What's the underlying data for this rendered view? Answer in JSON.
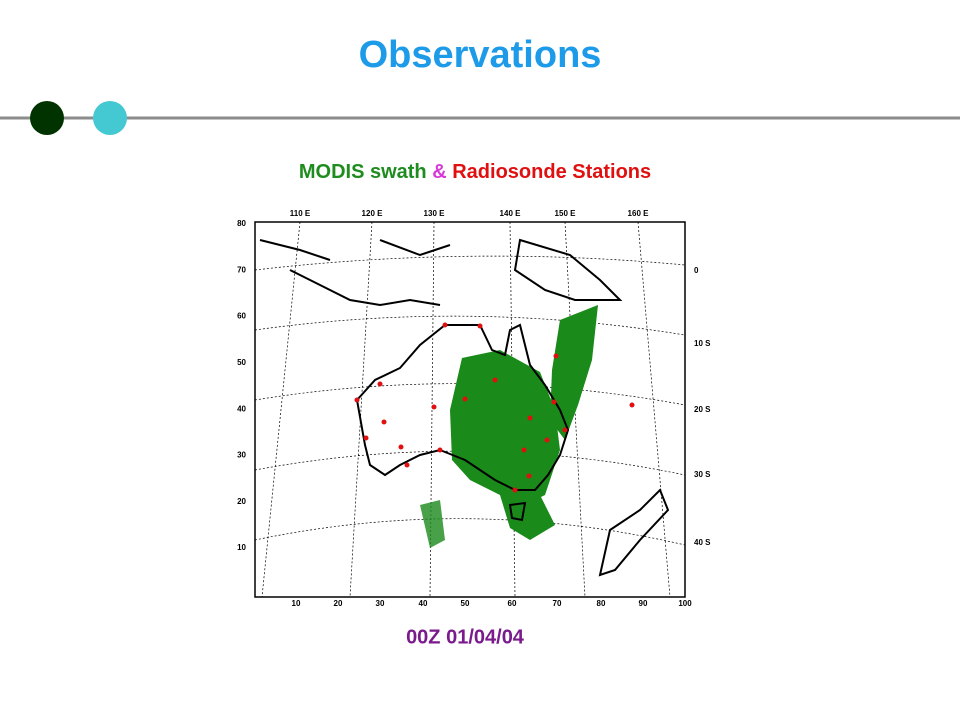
{
  "header": {
    "title": "Observations"
  },
  "subtitle": {
    "swath": "MODIS swath",
    "amp": "&",
    "stations": "Radiosonde Stations"
  },
  "map": {
    "top_labels": [
      "110 E",
      "120 E",
      "130 E",
      "140 E",
      "150 E",
      "160 E"
    ],
    "left_labels": [
      "80",
      "70",
      "60",
      "50",
      "40",
      "30",
      "20",
      "10"
    ],
    "bottom_labels": [
      "10",
      "20",
      "30",
      "40",
      "50",
      "60",
      "70",
      "80",
      "90",
      "100"
    ],
    "right_labels": [
      "0",
      "10 S",
      "20 S",
      "30 S",
      "40 S"
    ]
  },
  "footer": {
    "date": "00Z 01/04/04"
  }
}
